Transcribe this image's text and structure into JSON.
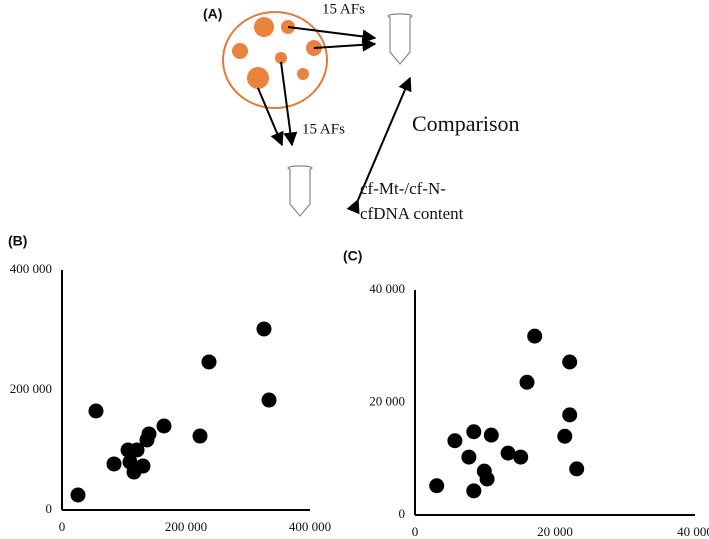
{
  "diagram": {
    "label": "(A)",
    "arrow_label_top": "15 AFs",
    "arrow_label_bottom": "15 AFs",
    "comparison": "Comparison",
    "content_line1": "cf-Mt-/cf-N-",
    "content_line2": "cfDNA content"
  },
  "chart_data": [
    {
      "type": "scatter",
      "panel_label": "(B)",
      "color": "#000000",
      "x": [
        25800,
        54800,
        83900,
        106500,
        109700,
        116100,
        121000,
        130600,
        137100,
        140300,
        164500,
        222600,
        237100,
        325800,
        333900
      ],
      "series": [
        {
          "values": [
            25000,
            165000,
            76700,
            100000,
            80000,
            63300,
            100000,
            73300,
            116700,
            126700,
            140000,
            123300,
            246700,
            301700,
            183300
          ]
        }
      ],
      "xlim": [
        0,
        400000
      ],
      "ylim": [
        0,
        400000
      ],
      "xticks": [
        0,
        {
          "value": 200000,
          "label": "200 000"
        },
        {
          "value": 400000,
          "label": "400 000"
        }
      ],
      "yticks": [
        0,
        {
          "value": 200000,
          "label": "200 000"
        },
        {
          "value": 400000,
          "label": "400 000"
        }
      ]
    },
    {
      "type": "scatter",
      "panel_label": "(C)",
      "color": "#000000",
      "x": [
        3100,
        5700,
        7700,
        8400,
        8400,
        9900,
        10300,
        10900,
        13300,
        15100,
        16000,
        17100,
        21400,
        22100,
        22100,
        23100
      ],
      "series": [
        {
          "values": [
            5200,
            13200,
            10300,
            14800,
            4300,
            7800,
            6400,
            14200,
            11000,
            10300,
            23600,
            31800,
            14000,
            17800,
            27200,
            8200
          ]
        }
      ],
      "xlim": [
        0,
        40000
      ],
      "ylim": [
        0,
        40000
      ],
      "xticks": [
        0,
        {
          "value": 20000,
          "label": "20 000"
        },
        {
          "value": 40000,
          "label": "40 000"
        }
      ],
      "yticks": [
        0,
        {
          "value": 20000,
          "label": "20 000"
        },
        {
          "value": 40000,
          "label": "40 000"
        }
      ]
    }
  ]
}
